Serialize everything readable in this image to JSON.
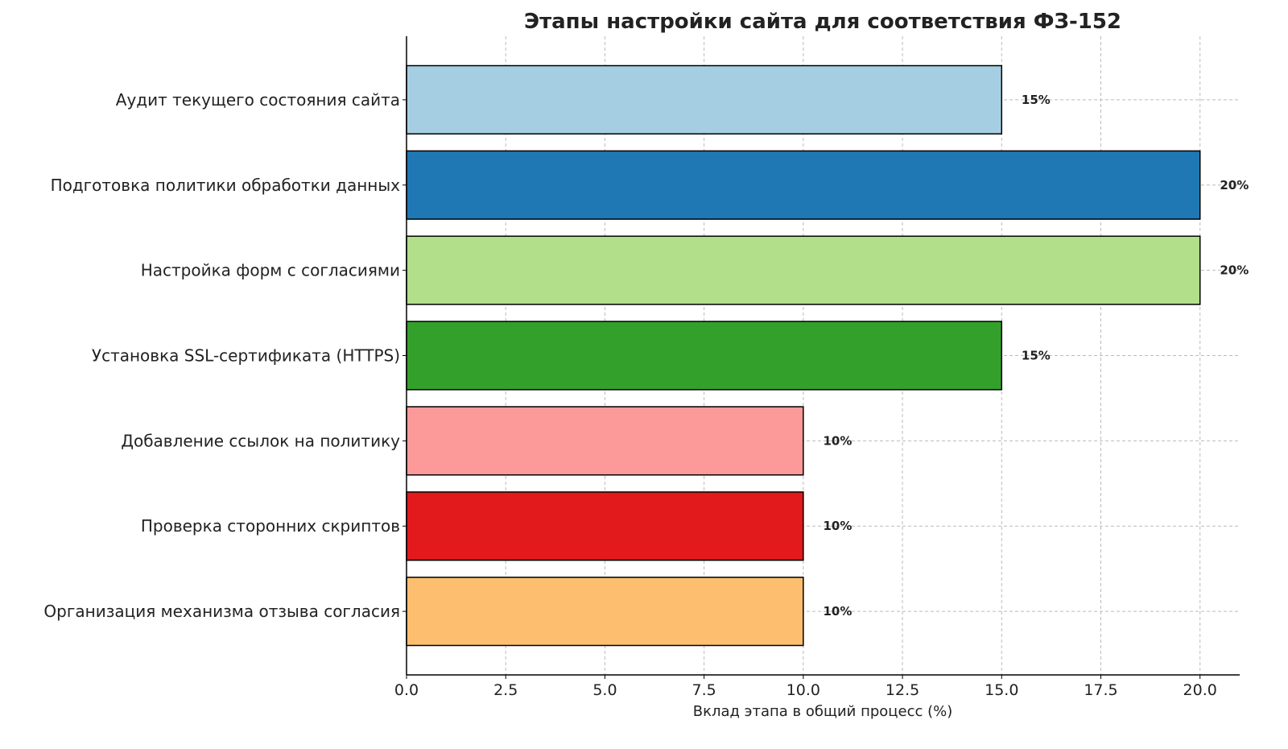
{
  "chart_data": {
    "type": "bar",
    "orientation": "horizontal",
    "title": "Этапы настройки сайта для соответствия ФЗ-152",
    "xlabel": "Вклад этапа в общий процесс (%)",
    "ylabel": "",
    "categories": [
      "Аудит текущего состояния сайта",
      "Подготовка политики обработки данных",
      "Настройка форм с согласиями",
      "Установка SSL-сертификата (HTTPS)",
      "Добавление ссылок на политику",
      "Проверка сторонних скриптов",
      "Организация механизма отзыва согласия"
    ],
    "values": [
      15,
      20,
      20,
      15,
      10,
      10,
      10
    ],
    "data_labels": [
      "15%",
      "20%",
      "20%",
      "15%",
      "10%",
      "10%",
      "10%"
    ],
    "colors": [
      "#a6cee3",
      "#1f78b4",
      "#b2df8a",
      "#33a02c",
      "#fb9a99",
      "#e31a1c",
      "#fdbf6f"
    ],
    "xlim": [
      0,
      21
    ],
    "xticks": [
      0,
      2.5,
      5,
      7.5,
      10,
      12.5,
      15,
      17.5,
      20
    ],
    "xtick_labels": [
      "0.0",
      "2.5",
      "5.0",
      "7.5",
      "10.0",
      "12.5",
      "15.0",
      "17.5",
      "20.0"
    ],
    "grid": true,
    "grid_style": "dashed"
  }
}
